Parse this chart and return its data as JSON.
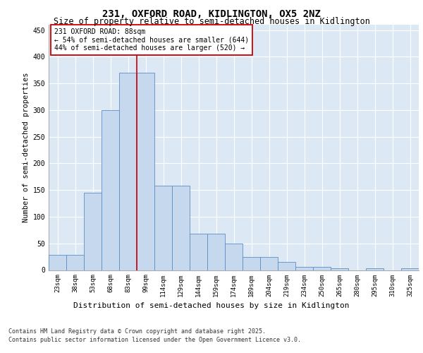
{
  "title_line1": "231, OXFORD ROAD, KIDLINGTON, OX5 2NZ",
  "title_line2": "Size of property relative to semi-detached houses in Kidlington",
  "xlabel": "Distribution of semi-detached houses by size in Kidlington",
  "ylabel": "Number of semi-detached properties",
  "categories": [
    "23sqm",
    "38sqm",
    "53sqm",
    "68sqm",
    "83sqm",
    "99sqm",
    "114sqm",
    "129sqm",
    "144sqm",
    "159sqm",
    "174sqm",
    "189sqm",
    "204sqm",
    "219sqm",
    "234sqm",
    "250sqm",
    "265sqm",
    "280sqm",
    "295sqm",
    "310sqm",
    "325sqm"
  ],
  "values": [
    28,
    28,
    145,
    300,
    370,
    370,
    158,
    158,
    68,
    68,
    50,
    25,
    25,
    15,
    6,
    6,
    3,
    0,
    3,
    0,
    3
  ],
  "bar_color": "#c5d8ee",
  "bar_edge_color": "#5b8ec4",
  "bar_width": 1.0,
  "reference_line_x": 4.5,
  "reference_line_color": "#cc0000",
  "annotation_text": "231 OXFORD ROAD: 88sqm\n← 54% of semi-detached houses are smaller (644)\n44% of semi-detached houses are larger (520) →",
  "annotation_box_color": "#ffffff",
  "annotation_box_edge_color": "#cc0000",
  "ylim": [
    0,
    460
  ],
  "yticks": [
    0,
    50,
    100,
    150,
    200,
    250,
    300,
    350,
    400,
    450
  ],
  "plot_bg_color": "#dce9f5",
  "grid_color": "#ffffff",
  "footer_line1": "Contains HM Land Registry data © Crown copyright and database right 2025.",
  "footer_line2": "Contains public sector information licensed under the Open Government Licence v3.0.",
  "title_fontsize": 10,
  "subtitle_fontsize": 8.5,
  "tick_fontsize": 6.5,
  "ylabel_fontsize": 7.5,
  "xlabel_fontsize": 8,
  "annotation_fontsize": 7,
  "footer_fontsize": 6
}
